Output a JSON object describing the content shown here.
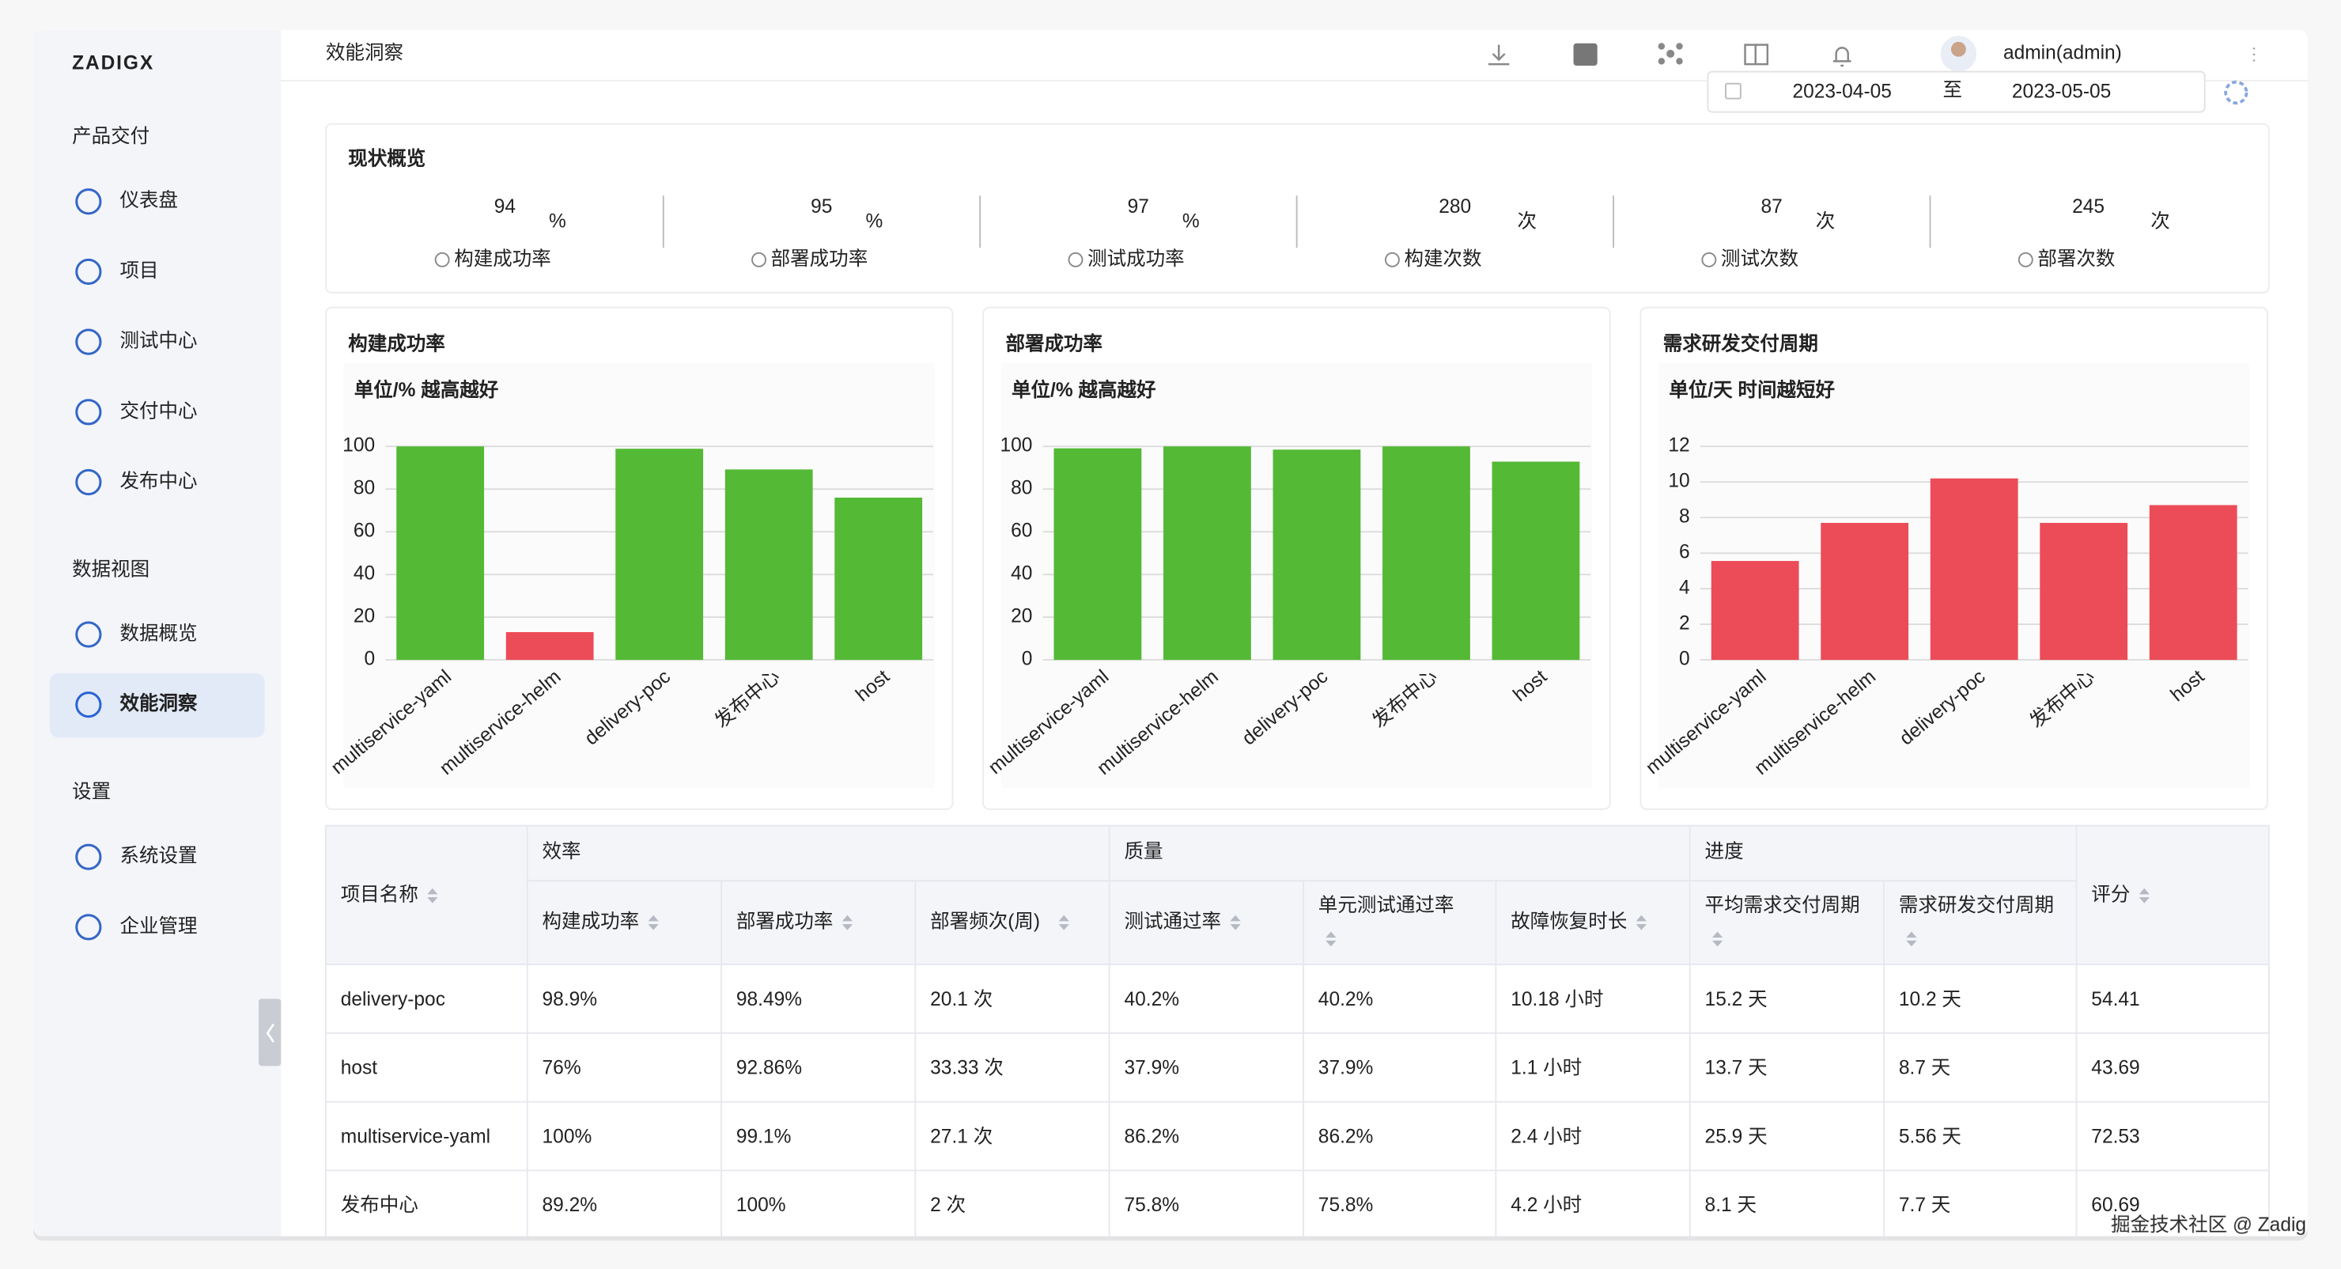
{
  "sidebar": {
    "logo": "ZADIGX",
    "sections": [
      {
        "title": "产品交付",
        "items": [
          "仪表盘",
          "项目",
          "测试中心",
          "交付中心",
          "发布中心"
        ]
      },
      {
        "title": "数据视图",
        "items": [
          "数据概览",
          "效能洞察"
        ]
      },
      {
        "title": "设置",
        "items": [
          "系统设置",
          "企业管理"
        ]
      }
    ]
  },
  "header": {
    "breadcrumb": "效能洞察",
    "user": "admin(admin)",
    "date_start": "2023-04-05",
    "date_sep": "至",
    "date_end": "2023-05-05"
  },
  "overview": {
    "title": "现状概览",
    "metrics": [
      {
        "value": 94,
        "unit": "%",
        "label": "构建成功率"
      },
      {
        "value": 95,
        "unit": "%",
        "label": "部署成功率"
      },
      {
        "value": 97,
        "unit": "%",
        "label": "测试成功率"
      },
      {
        "value": 280,
        "unit": "次",
        "label": "构建次数"
      },
      {
        "value": 87,
        "unit": "次",
        "label": "测试次数"
      },
      {
        "value": 245,
        "unit": "次",
        "label": "部署次数"
      }
    ]
  },
  "chart_data": [
    {
      "type": "bar",
      "title": "构建成功率",
      "subtitle": "单位/% 越高越好",
      "categories": [
        "multiservice-yaml",
        "multiservice-helm",
        "delivery-poc",
        "发布中心",
        "host"
      ],
      "values": [
        100,
        13,
        98.9,
        89.2,
        76
      ],
      "colors": [
        "#54b935",
        "#ec4c57",
        "#54b935",
        "#54b935",
        "#54b935"
      ],
      "ylim": [
        0,
        100
      ],
      "yticks": [
        0,
        20,
        40,
        60,
        80,
        100
      ],
      "grid": true
    },
    {
      "type": "bar",
      "title": "部署成功率",
      "subtitle": "单位/% 越高越好",
      "categories": [
        "multiservice-yaml",
        "multiservice-helm",
        "delivery-poc",
        "发布中心",
        "host"
      ],
      "values": [
        99.1,
        100,
        98.49,
        100,
        92.86
      ],
      "colors": [
        "#54b935",
        "#54b935",
        "#54b935",
        "#54b935",
        "#54b935"
      ],
      "ylim": [
        0,
        100
      ],
      "yticks": [
        0,
        20,
        40,
        60,
        80,
        100
      ],
      "grid": true
    },
    {
      "type": "bar",
      "title": "需求研发交付周期",
      "subtitle": "单位/天 时间越短好",
      "categories": [
        "multiservice-yaml",
        "multiservice-helm",
        "delivery-poc",
        "发布中心",
        "host"
      ],
      "values": [
        5.56,
        7.7,
        10.2,
        7.7,
        8.7
      ],
      "colors": [
        "#ec4c57",
        "#ec4c57",
        "#ec4c57",
        "#ec4c57",
        "#ec4c57"
      ],
      "ylim": [
        0,
        12
      ],
      "yticks": [
        0,
        2,
        4,
        6,
        8,
        10,
        12
      ],
      "grid": true
    }
  ],
  "table": {
    "groups": [
      "效率",
      "质量",
      "进度"
    ],
    "columns": [
      "项目名称",
      "构建成功率",
      "部署成功率",
      "部署频次(周)",
      "测试通过率",
      "单元测试通过率",
      "故障恢复时长",
      "平均需求交付周期",
      "需求研发交付周期",
      "评分"
    ],
    "rows": [
      [
        "delivery-poc",
        "98.9%",
        "98.49%",
        "20.1 次",
        "40.2%",
        "40.2%",
        "10.18 小时",
        "15.2 天",
        "10.2 天",
        "54.41"
      ],
      [
        "host",
        "76%",
        "92.86%",
        "33.33 次",
        "37.9%",
        "37.9%",
        "1.1 小时",
        "13.7 天",
        "8.7 天",
        "43.69"
      ],
      [
        "multiservice-yaml",
        "100%",
        "99.1%",
        "27.1 次",
        "86.2%",
        "86.2%",
        "2.4 小时",
        "25.9 天",
        "5.56 天",
        "72.53"
      ],
      [
        "发布中心",
        "89.2%",
        "100%",
        "2 次",
        "75.8%",
        "75.8%",
        "4.2 小时",
        "8.1 天",
        "7.7 天",
        "60.69"
      ]
    ]
  },
  "watermark": "掘金技术社区 @ Zadig"
}
